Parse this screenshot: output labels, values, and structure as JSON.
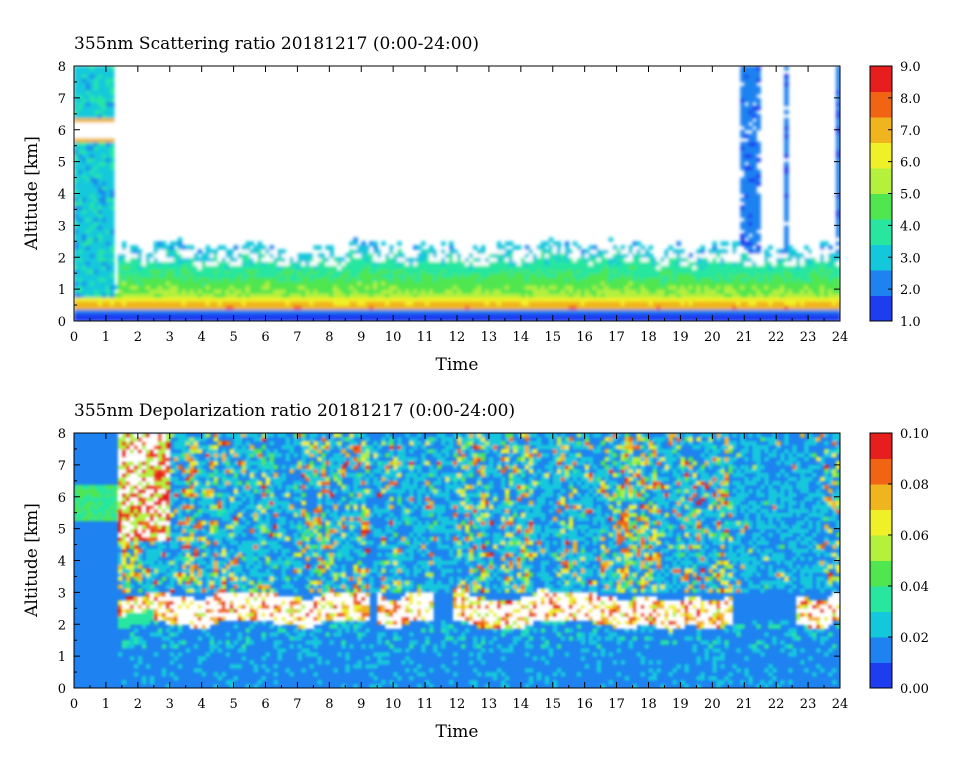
{
  "chart_data": [
    {
      "type": "heatmap",
      "title": "355nm Scattering ratio  20181217 (0:00-24:00)",
      "xlabel": "Time",
      "ylabel": "Altitude [km]",
      "xlim": [
        0,
        24
      ],
      "ylim": [
        0,
        8
      ],
      "x_ticks": [
        "0",
        "1",
        "2",
        "3",
        "4",
        "5",
        "6",
        "7",
        "8",
        "9",
        "10",
        "11",
        "12",
        "13",
        "14",
        "15",
        "16",
        "17",
        "18",
        "19",
        "20",
        "21",
        "22",
        "23",
        "24"
      ],
      "y_ticks": [
        "0",
        "1",
        "2",
        "3",
        "4",
        "5",
        "6",
        "7",
        "8"
      ],
      "colorbar": {
        "min": 1.0,
        "max": 9.0,
        "ticks": [
          "1.0",
          "2.0",
          "3.0",
          "4.0",
          "5.0",
          "6.0",
          "7.0",
          "8.0",
          "9.0"
        ],
        "colors": [
          "#1e3cf0",
          "#1e82f0",
          "#14c8dc",
          "#28e6a0",
          "#50e650",
          "#b4f03c",
          "#f0f028",
          "#f0b41e",
          "#f06414",
          "#e61e1e"
        ]
      },
      "features": {
        "background": "#ffffff",
        "aerosol_layer_top_km": 2.2,
        "bright_layer_km": [
          0.35,
          0.7
        ],
        "cirrus_segments_hours": [
          [
            0.0,
            1.3
          ],
          [
            20.9,
            21.5
          ],
          [
            22.2,
            22.4
          ],
          [
            23.9,
            24.0
          ]
        ],
        "high_values_color": "#ffffff"
      },
      "grid": false,
      "legend": "colorbar-right"
    },
    {
      "type": "heatmap",
      "title": "355nm Depolarization ratio  20181217 (0:00-24:00)",
      "xlabel": "Time",
      "ylabel": "Altitude [km]",
      "xlim": [
        0,
        24
      ],
      "ylim": [
        0,
        8
      ],
      "x_ticks": [
        "0",
        "1",
        "2",
        "3",
        "4",
        "5",
        "6",
        "7",
        "8",
        "9",
        "10",
        "11",
        "12",
        "13",
        "14",
        "15",
        "16",
        "17",
        "18",
        "19",
        "20",
        "21",
        "22",
        "23",
        "24"
      ],
      "y_ticks": [
        "0",
        "1",
        "2",
        "3",
        "4",
        "5",
        "6",
        "7",
        "8"
      ],
      "colorbar": {
        "min": 0.0,
        "max": 0.1,
        "ticks": [
          "0.00",
          "0.02",
          "0.04",
          "0.06",
          "0.08",
          "0.10"
        ],
        "colors": [
          "#1e3cf0",
          "#1e82f0",
          "#14c8dc",
          "#28e6a0",
          "#50e650",
          "#b4f03c",
          "#f0f028",
          "#f0b41e",
          "#f06414",
          "#e61e1e"
        ]
      },
      "features": {
        "background": "#1e82f0",
        "noisy_region_km": [
          3.0,
          8.0
        ],
        "layer_top_km": 2.4,
        "high_values_color": "#ffffff"
      },
      "grid": false,
      "legend": "colorbar-right"
    }
  ]
}
